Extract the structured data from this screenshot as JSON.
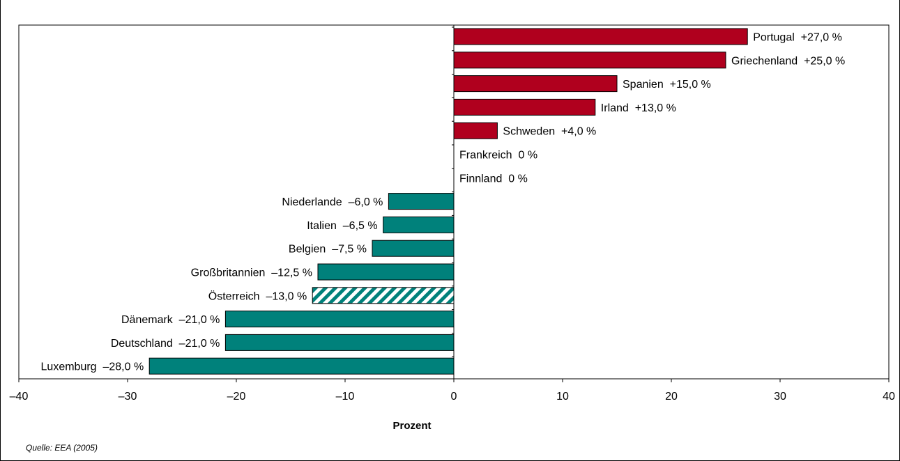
{
  "chart_data": {
    "type": "bar",
    "orientation": "horizontal",
    "xlabel": "Prozent",
    "xlim": [
      -40,
      40
    ],
    "x_ticks": [
      -40,
      -30,
      -20,
      -10,
      0,
      10,
      20,
      30,
      40
    ],
    "x_tick_labels": [
      "–40",
      "–30",
      "–20",
      "–10",
      "0",
      "10",
      "20",
      "30",
      "40"
    ],
    "grid": false,
    "categories": [
      "Portugal",
      "Griechenland",
      "Spanien",
      "Irland",
      "Schweden",
      "Frankreich",
      "Finnland",
      "Niederlande",
      "Italien",
      "Belgien",
      "Großbritannien",
      "Österreich",
      "Dänemark",
      "Deutschland",
      "Luxemburg"
    ],
    "values": [
      27.0,
      25.0,
      15.0,
      13.0,
      4.0,
      0,
      0,
      -6.0,
      -6.5,
      -7.5,
      -12.5,
      -13.0,
      -21.0,
      -21.0,
      -28.0
    ],
    "data_labels": [
      "Portugal  +27,0 %",
      "Griechenland  +25,0 %",
      "Spanien  +15,0 %",
      "Irland  +13,0 %",
      "Schweden  +4,0 %",
      "Frankreich  0 %",
      "Finnland  0 %",
      "Niederlande  –6,0 %",
      "Italien  –6,5 %",
      "Belgien  –7,5 %",
      "Großbritannien  –12,5 %",
      "Österreich  –13,0 %",
      "Dänemark  –21,0 %",
      "Deutschland  –21,0 %",
      "Luxemburg  –28,0 %"
    ],
    "highlighted_category": "Österreich",
    "highlight_style": "hatched",
    "colors": {
      "positive": "#B0001E",
      "negative": "#00817B",
      "hatch": "#00817B",
      "outline": "#000000"
    },
    "source": "Quelle: EEA (2005)"
  }
}
